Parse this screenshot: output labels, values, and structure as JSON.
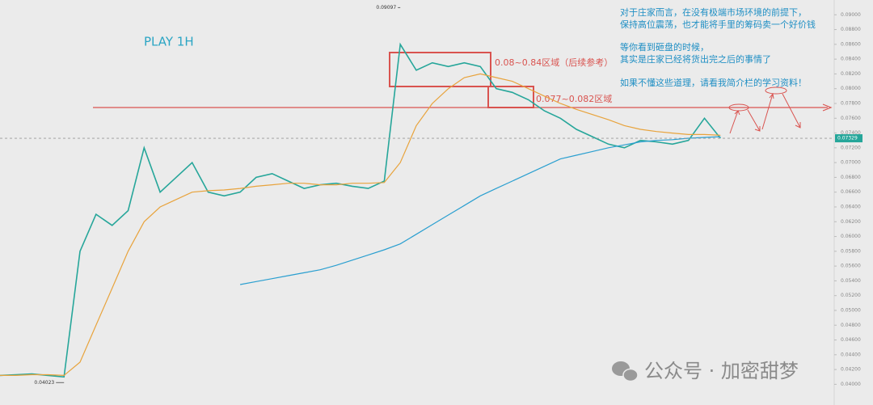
{
  "chart_data": {
    "type": "line",
    "title": "PLAY   1H",
    "notes": [
      "对于庄家而言，在没有极端市场环境的前提下，",
      "保持高位震荡，也才能将手里的筹码卖一个好价钱",
      "等你看到砸盘的时候，",
      "其实是庄家已经将货出完之后的事情了",
      "如果不懂这些道理，请看我简介栏的学习资料！"
    ],
    "zone_labels": [
      "0.08~0.84区域（后续参考）",
      "0.077~0.082区域"
    ],
    "watermark": "公众号 · 加密甜梦",
    "high": 0.09097,
    "low": 0.04023,
    "last": 0.07329,
    "x": [
      0,
      1,
      2,
      3,
      4,
      5,
      6,
      7,
      8,
      9,
      10,
      11,
      12,
      13,
      14,
      15,
      16,
      17,
      18,
      19,
      20,
      21,
      22,
      23,
      24,
      25,
      26,
      27,
      28,
      29,
      30,
      31,
      32,
      33,
      34,
      35,
      36,
      37,
      38,
      39,
      40,
      41,
      42,
      43,
      44,
      45
    ],
    "xlim": [
      0,
      52
    ],
    "series": [
      {
        "color": "#26a69a",
        "values": [
          0.0412,
          0.0413,
          0.0414,
          0.0412,
          0.041,
          0.058,
          0.063,
          0.0615,
          0.0635,
          0.072,
          0.066,
          0.068,
          0.07,
          0.066,
          0.0655,
          0.066,
          0.068,
          0.0685,
          0.0675,
          0.0665,
          0.067,
          0.0672,
          0.0668,
          0.0665,
          0.0675,
          0.086,
          0.0825,
          0.0835,
          0.083,
          0.0835,
          0.083,
          0.08,
          0.0795,
          0.0785,
          0.077,
          0.076,
          0.0745,
          0.0735,
          0.0725,
          0.072,
          0.073,
          0.0728,
          0.0725,
          0.073,
          0.076,
          0.0733
        ]
      },
      {
        "color": "#e8a33c",
        "values": [
          0.0412,
          0.0412,
          0.0413,
          0.0413,
          0.0412,
          0.043,
          0.048,
          0.053,
          0.058,
          0.062,
          0.064,
          0.065,
          0.066,
          0.0662,
          0.0663,
          0.0665,
          0.0668,
          0.067,
          0.0672,
          0.0672,
          0.067,
          0.067,
          0.0672,
          0.0672,
          0.0673,
          0.07,
          0.075,
          0.078,
          0.08,
          0.0815,
          0.082,
          0.0815,
          0.081,
          0.08,
          0.079,
          0.078,
          0.0772,
          0.0765,
          0.0758,
          0.075,
          0.0745,
          0.0742,
          0.074,
          0.0738,
          0.0738,
          0.0737
        ]
      },
      {
        "color": "#2a9fd0",
        "values": [
          null,
          null,
          null,
          null,
          null,
          null,
          null,
          null,
          null,
          null,
          null,
          null,
          null,
          null,
          null,
          0.0535,
          0.0539,
          0.0543,
          0.0547,
          0.0551,
          0.0555,
          0.0561,
          0.0568,
          0.0575,
          0.0582,
          0.059,
          0.0603,
          0.0616,
          0.0629,
          0.0642,
          0.0655,
          0.0665,
          0.0675,
          0.0685,
          0.0695,
          0.0705,
          0.071,
          0.0715,
          0.072,
          0.0724,
          0.0728,
          0.073,
          0.0731,
          0.0733,
          0.0734,
          0.0735
        ]
      }
    ],
    "ylim": [
      0.0372,
      0.092
    ],
    "yticks": [
      {
        "value": 0.04,
        "label": "0.04000"
      },
      {
        "value": 0.042,
        "label": "0.04200"
      },
      {
        "value": 0.044,
        "label": "0.04400"
      },
      {
        "value": 0.046,
        "label": "0.04600"
      },
      {
        "value": 0.048,
        "label": "0.04800"
      },
      {
        "value": 0.05,
        "label": "0.05000"
      },
      {
        "value": 0.052,
        "label": "0.05200"
      },
      {
        "value": 0.054,
        "label": "0.05400"
      },
      {
        "value": 0.056,
        "label": "0.05600"
      },
      {
        "value": 0.058,
        "label": "0.05800"
      },
      {
        "value": 0.06,
        "label": "0.06000"
      },
      {
        "value": 0.062,
        "label": "0.06200"
      },
      {
        "value": 0.064,
        "label": "0.06400"
      },
      {
        "value": 0.066,
        "label": "0.06600"
      },
      {
        "value": 0.068,
        "label": "0.06800"
      },
      {
        "value": 0.07,
        "label": "0.07000"
      },
      {
        "value": 0.072,
        "label": "0.07200"
      },
      {
        "value": 0.074,
        "label": "0.07400"
      },
      {
        "value": 0.076,
        "label": "0.07600"
      },
      {
        "value": 0.078,
        "label": "0.07800"
      },
      {
        "value": 0.08,
        "label": "0.08000"
      },
      {
        "value": 0.082,
        "label": "0.08200"
      },
      {
        "value": 0.084,
        "label": "0.08400"
      },
      {
        "value": 0.086,
        "label": "0.08600"
      },
      {
        "value": 0.088,
        "label": "0.08800"
      },
      {
        "value": 0.09,
        "label": "0.09000"
      }
    ]
  }
}
